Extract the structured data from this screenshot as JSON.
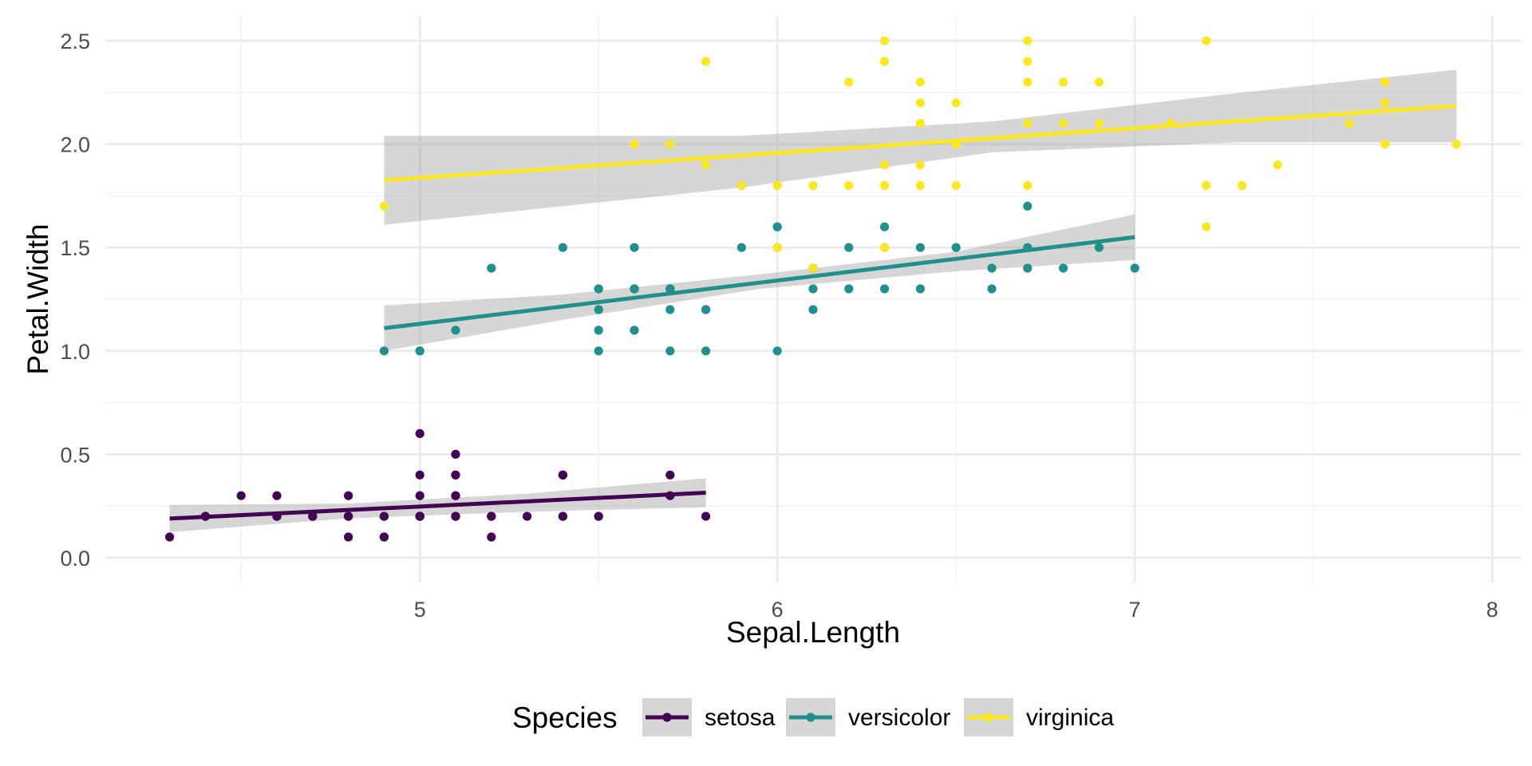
{
  "chart_data": {
    "type": "scatter",
    "xlabel": "Sepal.Length",
    "ylabel": "Petal.Width",
    "xlim": [
      4.12,
      8.08
    ],
    "ylim": [
      -0.12,
      2.62
    ],
    "x_ticks": [
      5,
      6,
      7,
      8
    ],
    "y_ticks": [
      0.0,
      0.5,
      1.0,
      1.5,
      2.0,
      2.5
    ],
    "x_tick_labels": [
      "5",
      "6",
      "7",
      "8"
    ],
    "y_tick_labels": [
      "0.0",
      "0.5",
      "1.0",
      "1.5",
      "2.0",
      "2.5"
    ],
    "grid": true,
    "legend": {
      "title": "Species",
      "position": "bottom",
      "labels": [
        "setosa",
        "versicolor",
        "virginica"
      ]
    },
    "series": [
      {
        "name": "setosa",
        "color": "#440154",
        "points": [
          [
            5.1,
            0.2
          ],
          [
            4.9,
            0.2
          ],
          [
            4.7,
            0.2
          ],
          [
            4.6,
            0.2
          ],
          [
            5.0,
            0.2
          ],
          [
            5.4,
            0.4
          ],
          [
            4.6,
            0.3
          ],
          [
            5.0,
            0.2
          ],
          [
            4.4,
            0.2
          ],
          [
            4.9,
            0.1
          ],
          [
            5.4,
            0.2
          ],
          [
            4.8,
            0.2
          ],
          [
            4.8,
            0.1
          ],
          [
            4.3,
            0.1
          ],
          [
            5.8,
            0.2
          ],
          [
            5.7,
            0.4
          ],
          [
            5.4,
            0.4
          ],
          [
            5.1,
            0.3
          ],
          [
            5.7,
            0.3
          ],
          [
            5.1,
            0.3
          ],
          [
            5.4,
            0.2
          ],
          [
            5.1,
            0.4
          ],
          [
            4.6,
            0.2
          ],
          [
            5.1,
            0.5
          ],
          [
            4.8,
            0.2
          ],
          [
            5.0,
            0.2
          ],
          [
            5.0,
            0.4
          ],
          [
            5.2,
            0.2
          ],
          [
            5.2,
            0.2
          ],
          [
            4.7,
            0.2
          ],
          [
            4.8,
            0.2
          ],
          [
            5.4,
            0.4
          ],
          [
            5.2,
            0.1
          ],
          [
            5.5,
            0.2
          ],
          [
            4.9,
            0.2
          ],
          [
            5.0,
            0.2
          ],
          [
            5.5,
            0.2
          ],
          [
            4.9,
            0.1
          ],
          [
            4.4,
            0.2
          ],
          [
            5.1,
            0.2
          ],
          [
            5.0,
            0.3
          ],
          [
            4.5,
            0.3
          ],
          [
            4.4,
            0.2
          ],
          [
            5.0,
            0.6
          ],
          [
            5.1,
            0.4
          ],
          [
            4.8,
            0.3
          ],
          [
            5.1,
            0.2
          ],
          [
            4.6,
            0.2
          ],
          [
            5.3,
            0.2
          ],
          [
            5.0,
            0.2
          ]
        ],
        "fit": {
          "x": [
            4.3,
            5.8
          ],
          "y": [
            0.189,
            0.314
          ]
        },
        "band": {
          "x": [
            4.3,
            4.8,
            5.3,
            5.8
          ],
          "upper": [
            0.255,
            0.262,
            0.31,
            0.384
          ],
          "lower": [
            0.123,
            0.19,
            0.222,
            0.244
          ]
        }
      },
      {
        "name": "versicolor",
        "color": "#21908C",
        "points": [
          [
            7.0,
            1.4
          ],
          [
            6.4,
            1.5
          ],
          [
            6.9,
            1.5
          ],
          [
            5.5,
            1.3
          ],
          [
            6.5,
            1.5
          ],
          [
            5.7,
            1.3
          ],
          [
            6.3,
            1.6
          ],
          [
            4.9,
            1.0
          ],
          [
            6.6,
            1.3
          ],
          [
            5.2,
            1.4
          ],
          [
            5.0,
            1.0
          ],
          [
            5.9,
            1.5
          ],
          [
            6.0,
            1.0
          ],
          [
            6.1,
            1.4
          ],
          [
            5.6,
            1.3
          ],
          [
            6.7,
            1.4
          ],
          [
            5.6,
            1.5
          ],
          [
            5.8,
            1.0
          ],
          [
            6.2,
            1.5
          ],
          [
            5.6,
            1.1
          ],
          [
            5.9,
            1.8
          ],
          [
            6.1,
            1.3
          ],
          [
            6.3,
            1.5
          ],
          [
            6.1,
            1.2
          ],
          [
            6.4,
            1.3
          ],
          [
            6.6,
            1.4
          ],
          [
            6.8,
            1.4
          ],
          [
            6.7,
            1.7
          ],
          [
            6.0,
            1.5
          ],
          [
            5.7,
            1.0
          ],
          [
            5.5,
            1.1
          ],
          [
            5.5,
            1.0
          ],
          [
            5.8,
            1.2
          ],
          [
            6.0,
            1.6
          ],
          [
            5.4,
            1.5
          ],
          [
            6.0,
            1.6
          ],
          [
            6.7,
            1.5
          ],
          [
            6.3,
            1.3
          ],
          [
            5.6,
            1.3
          ],
          [
            5.5,
            1.3
          ],
          [
            5.5,
            1.2
          ],
          [
            6.1,
            1.4
          ],
          [
            5.8,
            1.2
          ],
          [
            5.0,
            1.0
          ],
          [
            5.6,
            1.3
          ],
          [
            5.7,
            1.2
          ],
          [
            5.7,
            1.3
          ],
          [
            6.2,
            1.3
          ],
          [
            5.1,
            1.1
          ],
          [
            5.7,
            1.3
          ]
        ],
        "fit": {
          "x": [
            4.9,
            7.0
          ],
          "y": [
            1.11,
            1.55
          ]
        },
        "band": {
          "x": [
            4.9,
            5.4,
            5.95,
            6.5,
            7.0
          ],
          "upper": [
            1.22,
            1.273,
            1.37,
            1.48,
            1.66
          ],
          "lower": [
            1.0,
            1.15,
            1.3,
            1.385,
            1.44
          ]
        }
      },
      {
        "name": "virginica",
        "color": "#FDE725",
        "points": [
          [
            6.3,
            2.5
          ],
          [
            5.8,
            1.9
          ],
          [
            7.1,
            2.1
          ],
          [
            6.3,
            1.8
          ],
          [
            6.5,
            2.2
          ],
          [
            7.6,
            2.1
          ],
          [
            4.9,
            1.7
          ],
          [
            7.3,
            1.8
          ],
          [
            6.7,
            1.8
          ],
          [
            7.2,
            2.5
          ],
          [
            6.5,
            2.0
          ],
          [
            6.4,
            1.9
          ],
          [
            6.8,
            2.1
          ],
          [
            5.7,
            2.0
          ],
          [
            5.8,
            2.4
          ],
          [
            6.4,
            2.3
          ],
          [
            6.5,
            1.8
          ],
          [
            7.7,
            2.2
          ],
          [
            7.7,
            2.3
          ],
          [
            6.0,
            1.5
          ],
          [
            6.9,
            2.3
          ],
          [
            5.6,
            2.0
          ],
          [
            7.7,
            2.0
          ],
          [
            6.3,
            1.8
          ],
          [
            6.7,
            2.1
          ],
          [
            7.2,
            1.8
          ],
          [
            6.2,
            1.8
          ],
          [
            6.1,
            1.8
          ],
          [
            6.4,
            2.1
          ],
          [
            7.2,
            1.6
          ],
          [
            7.4,
            1.9
          ],
          [
            7.9,
            2.0
          ],
          [
            6.4,
            2.2
          ],
          [
            6.3,
            1.5
          ],
          [
            6.1,
            1.4
          ],
          [
            7.7,
            2.3
          ],
          [
            6.3,
            2.4
          ],
          [
            6.4,
            1.8
          ],
          [
            6.0,
            1.8
          ],
          [
            6.9,
            2.1
          ],
          [
            6.7,
            2.4
          ],
          [
            6.9,
            2.3
          ],
          [
            5.8,
            1.9
          ],
          [
            6.8,
            2.3
          ],
          [
            6.7,
            2.5
          ],
          [
            6.7,
            2.3
          ],
          [
            6.3,
            1.9
          ],
          [
            6.5,
            2.0
          ],
          [
            6.2,
            2.3
          ],
          [
            5.9,
            1.8
          ]
        ],
        "fit": {
          "x": [
            4.9,
            7.9
          ],
          "y": [
            1.825,
            2.185
          ]
        },
        "band": {
          "x": [
            4.9,
            5.9,
            6.6,
            7.3,
            7.9
          ],
          "upper": [
            2.04,
            2.04,
            2.11,
            2.25,
            2.36
          ],
          "lower": [
            1.61,
            1.79,
            1.96,
            2.01,
            2.01
          ]
        }
      }
    ]
  }
}
